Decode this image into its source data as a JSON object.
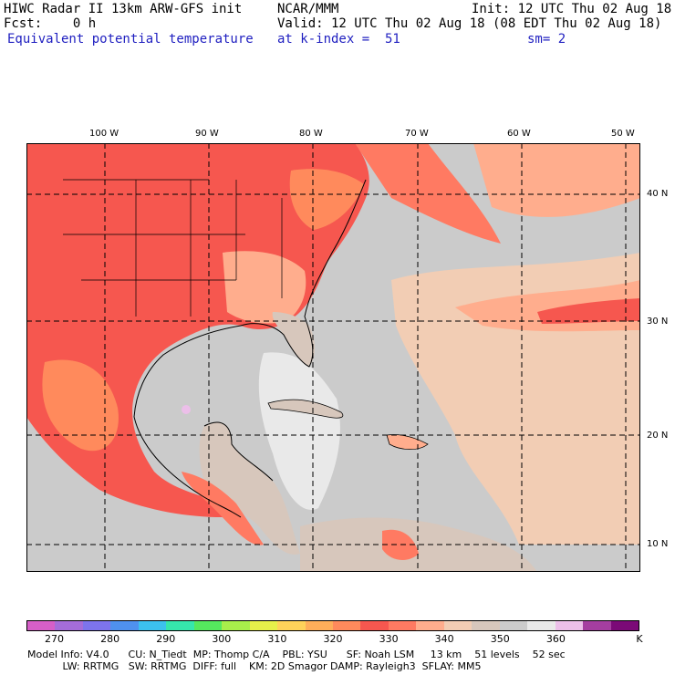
{
  "header": {
    "line1_left": "HIWC Radar II 13km ARW-GFS init",
    "line1_mid": "NCAR/MMM",
    "line1_right": "Init: 12 UTC Thu 02 Aug 18",
    "line2_left": "Fcst:    0 h",
    "line2_right": "Valid: 12 UTC Thu 02 Aug 18 (08 EDT Thu 02 Aug 18)",
    "line3_left": "Equivalent potential temperature",
    "line3_mid": "at k-index =  51",
    "line3_right": "sm= 2"
  },
  "map": {
    "lon_labels": [
      "100 W",
      "90 W",
      "80 W",
      "70 W",
      "60 W",
      "50 W"
    ],
    "lat_labels": [
      "40 N",
      "30 N",
      "20 N",
      "10 N"
    ],
    "colors": {
      "ocean": "#cbcbcb",
      "warm_ocean": "#f2cdb4",
      "hot_land": "#f6574f",
      "very_hot": "#ff8a5c",
      "coastline": "#000000"
    }
  },
  "colorbar": {
    "colors": [
      "#d65fc8",
      "#a56dd9",
      "#7d74ec",
      "#4f91ee",
      "#3cc1ee",
      "#36e6ac",
      "#55e85e",
      "#a8ee4b",
      "#e6f04a",
      "#ffd25a",
      "#ffae5a",
      "#ff8a5c",
      "#f6574f",
      "#ff7a62",
      "#ffad8d",
      "#f2cdb4",
      "#d7c7bc",
      "#cbcbcb",
      "#e9e9e9",
      "#ecbfe9",
      "#a53ea0",
      "#7b0a77"
    ],
    "labels": [
      "270",
      "280",
      "290",
      "300",
      "310",
      "320",
      "330",
      "340",
      "350",
      "360",
      "K"
    ]
  },
  "footer": {
    "line1": "Model Info: V4.0      CU: N_Tiedt  MP: Thomp C/A    PBL: YSU      SF: Noah LSM     13 km    51 levels    52 sec",
    "line2": "           LW: RRTMG   SW: RRTMG  DIFF: full    KM: 2D Smagor DAMP: Rayleigh3  SFLAY: MM5"
  }
}
